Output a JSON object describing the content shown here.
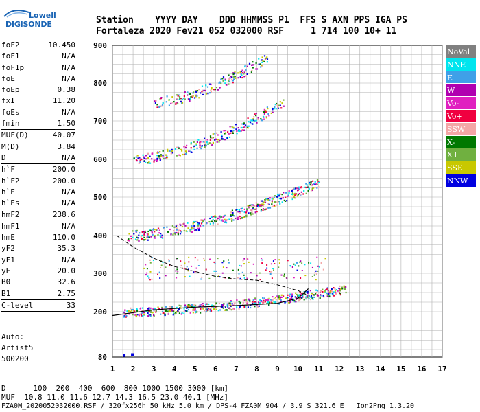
{
  "logo": {
    "line1": "Lowell",
    "line2": "DIGISONDE"
  },
  "header": {
    "line1": "Station    YYYY DAY    DDD HHMMSS P1  FFS S AXN PPS IGA PS",
    "line2": "Fortaleza 2020 Fev21 052 032000 RSF     1 714 100 10+ 11"
  },
  "params": [
    {
      "k": "foF2",
      "v": "10.450"
    },
    {
      "k": "foF1",
      "v": "N/A"
    },
    {
      "k": "foF1p",
      "v": "N/A"
    },
    {
      "k": "foE",
      "v": "N/A"
    },
    {
      "k": "foEp",
      "v": "0.38"
    },
    {
      "k": "fxI",
      "v": "11.20"
    },
    {
      "k": "foEs",
      "v": "N/A"
    },
    {
      "k": "fmin",
      "v": "1.50"
    },
    {
      "sep": true
    },
    {
      "k": "MUF(D)",
      "v": "40.07"
    },
    {
      "k": "M(D)",
      "v": "3.84"
    },
    {
      "k": "D",
      "v": "N/A"
    },
    {
      "sep": true
    },
    {
      "k": "h`F",
      "v": "200.0"
    },
    {
      "k": "h`F2",
      "v": "200.0"
    },
    {
      "k": "h`E",
      "v": "N/A"
    },
    {
      "k": "h`Es",
      "v": "N/A"
    },
    {
      "sep": true
    },
    {
      "k": "hmF2",
      "v": "238.6"
    },
    {
      "k": "hmF1",
      "v": "N/A"
    },
    {
      "k": "hmE",
      "v": "110.0"
    },
    {
      "k": "yF2",
      "v": "35.3"
    },
    {
      "k": "yF1",
      "v": "N/A"
    },
    {
      "k": "yE",
      "v": "20.0"
    },
    {
      "k": "B0",
      "v": "32.6"
    },
    {
      "k": "B1",
      "v": "2.75"
    },
    {
      "sep": true
    },
    {
      "k": "C-level",
      "v": "33"
    },
    {
      "sep": true
    }
  ],
  "auto": {
    "line1": "Auto:",
    "line2": "Artist5",
    "line3": "500200"
  },
  "legend": [
    {
      "label": "NoVal",
      "color": "#808080"
    },
    {
      "label": "NNE",
      "color": "#00e5ee"
    },
    {
      "label": "E",
      "color": "#3fa0e8"
    },
    {
      "label": "W",
      "color": "#b000b0"
    },
    {
      "label": "Vo-",
      "color": "#e020c0"
    },
    {
      "label": "Vo+",
      "color": "#f00040"
    },
    {
      "label": "SSW",
      "color": "#f4a6a6"
    },
    {
      "label": "X-",
      "color": "#007800"
    },
    {
      "label": "X+",
      "color": "#70b040"
    },
    {
      "label": "SSE",
      "color": "#c8c800"
    },
    {
      "label": "NNW",
      "color": "#0000e0"
    }
  ],
  "footer": {
    "line1": "D      100  200  400  600  800 1000 1500 3000 [km]",
    "line2": "MUF  10.8 11.0 11.6 12.7 14.3 16.5 23.0 40.1 [MHz]",
    "line3": "FZA0M_2020052032000.RSF / 320fx256h 50 kHz 5.0 km / DPS-4 FZA0M 904 / 3.9 S 321.6 E   Ion2Png 1.3.20"
  },
  "chart_data": {
    "type": "scatter",
    "xlim": [
      1,
      17
    ],
    "ylim": [
      80,
      900
    ],
    "x_ticks": [
      "1",
      "2",
      "3",
      "4",
      "5",
      "6",
      "7",
      "8",
      "9",
      "10",
      "11",
      "12",
      "13",
      "14",
      "15",
      "16",
      "17"
    ],
    "y_ticks": [
      "80",
      "200",
      "300",
      "400",
      "500",
      "600",
      "700",
      "800",
      "900"
    ],
    "y_scale": "nonlinear",
    "grid": true,
    "traces": [
      {
        "name": "1st hop",
        "x_range": [
          1.5,
          12.3
        ],
        "h_start": 200,
        "h_end": 260
      },
      {
        "name": "2nd hop",
        "x_range": [
          1.7,
          11.0
        ],
        "h_start": 400,
        "h_end": 540
      },
      {
        "name": "3rd hop",
        "x_range": [
          2.0,
          9.3
        ],
        "h_start": 600,
        "h_end": 750
      },
      {
        "name": "4th hop",
        "x_range": [
          3.0,
          8.5
        ],
        "h_start": 750,
        "h_end": 870
      }
    ],
    "profile_curve": {
      "x": [
        1.0,
        3,
        5,
        7,
        9,
        10,
        10.5
      ],
      "y": [
        190,
        205,
        212,
        216,
        222,
        235,
        260
      ]
    },
    "dashed_curve": {
      "x": [
        1.2,
        2,
        3,
        4,
        5,
        6,
        7,
        8,
        9,
        10,
        10.4
      ],
      "y": [
        400,
        370,
        340,
        318,
        305,
        292,
        285,
        282,
        270,
        255,
        245
      ]
    }
  }
}
